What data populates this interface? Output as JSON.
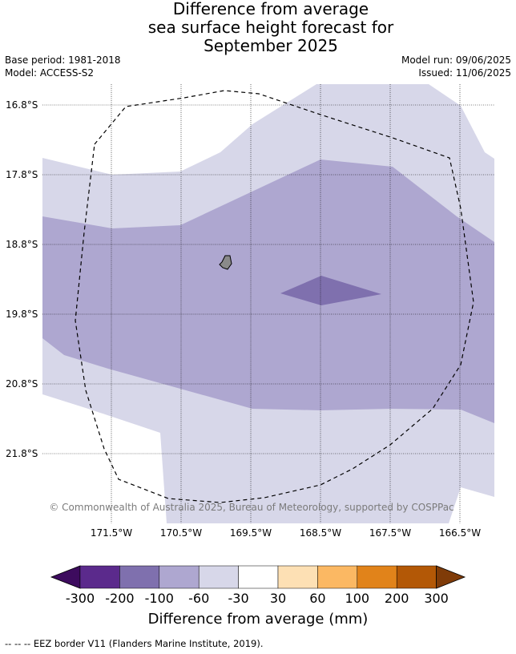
{
  "title": {
    "line1": "Difference from average",
    "line2": "sea surface height forecast for",
    "line3": "September 2025"
  },
  "meta": {
    "base_period": "Base period: 1981-2018",
    "model": "Model: ACCESS-S2",
    "model_run": "Model run: 09/06/2025",
    "issued": "Issued: 11/06/2025"
  },
  "map": {
    "lat_labels": [
      "16.8°S",
      "17.8°S",
      "18.8°S",
      "19.8°S",
      "20.8°S",
      "21.8°S"
    ],
    "lon_labels": [
      "171.5°W",
      "170.5°W",
      "169.5°W",
      "168.5°W",
      "167.5°W",
      "166.5°W"
    ],
    "copyright": "© Commonwealth of Australia 2025, Bureau of Meteorology, supported by COSPPac",
    "island": "land",
    "eez_border": "dashed"
  },
  "colorbar": {
    "title": "Difference from average (mm)",
    "labels": [
      "-300",
      "-200",
      "-100",
      "-60",
      "-30",
      "30",
      "60",
      "100",
      "200",
      "300"
    ],
    "colors": [
      "#3d0b5e",
      "#5b2a8c",
      "#7f70ae",
      "#aea7d0",
      "#d7d7e9",
      "#ffffff",
      "#fde0b4",
      "#fbb863",
      "#e1831a",
      "#b35806",
      "#7f3b08"
    ]
  },
  "footnote": "--  --  -- EEZ border V11 (Flanders Marine Institute, 2019)."
}
